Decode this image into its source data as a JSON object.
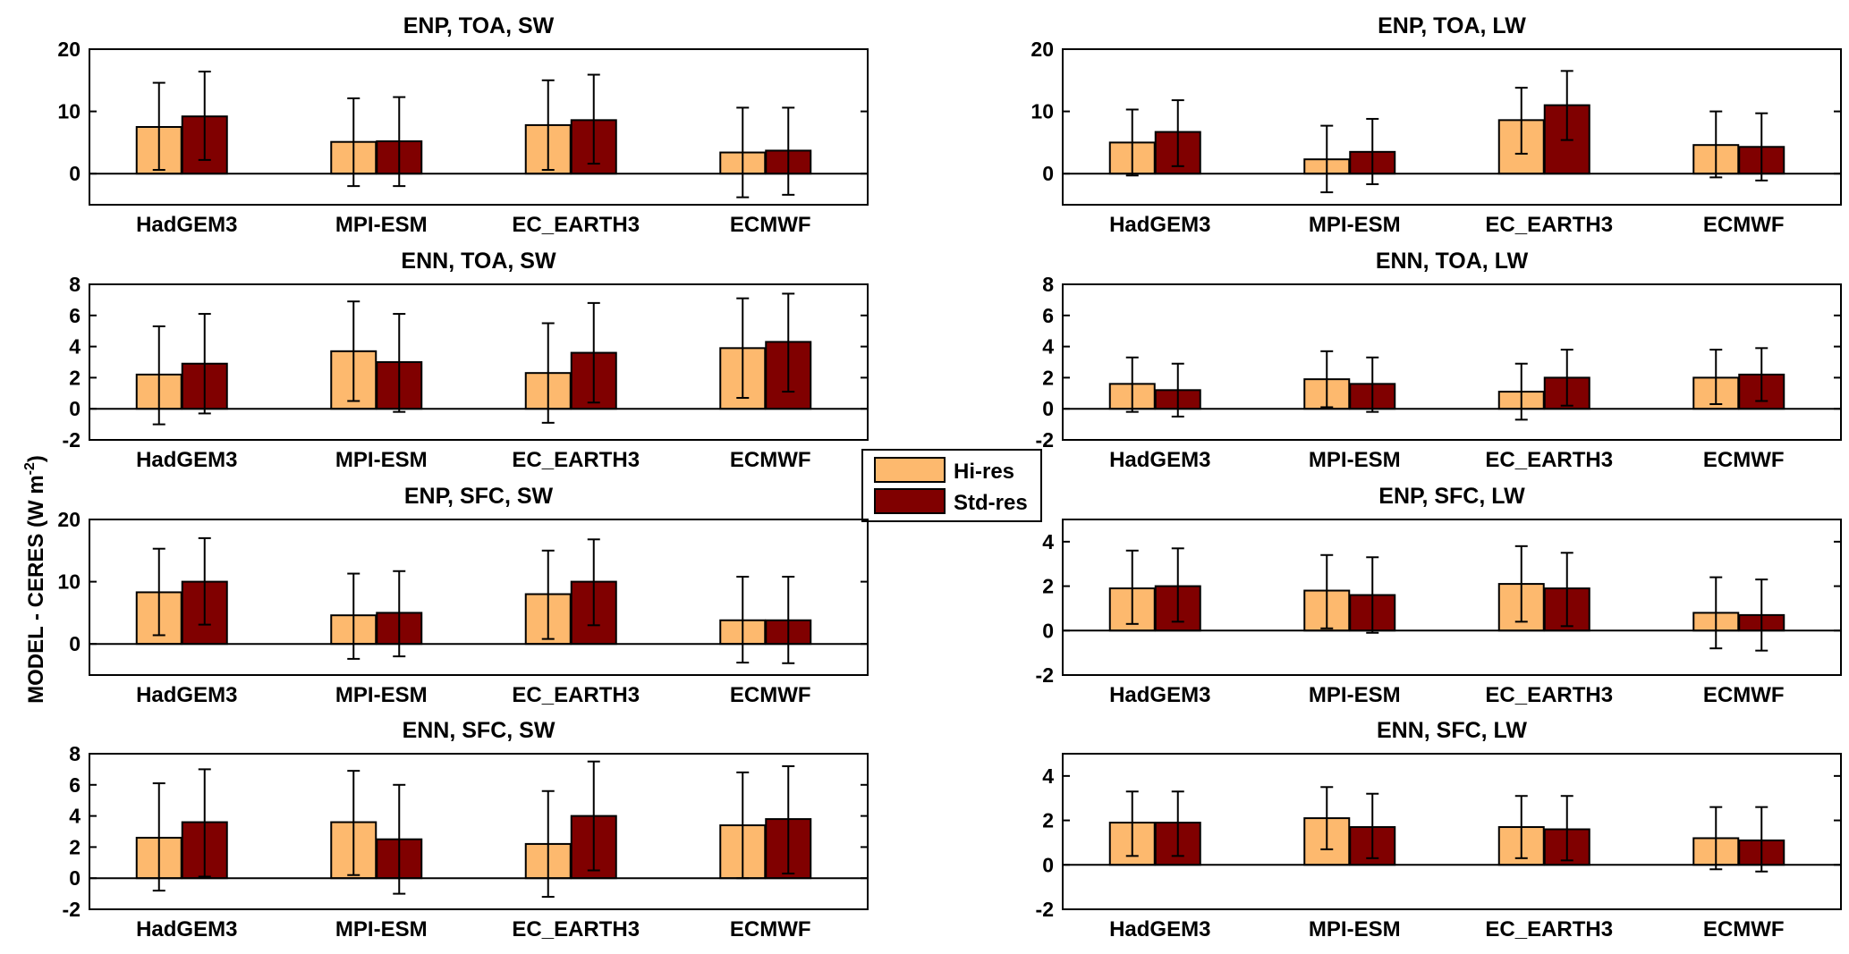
{
  "ylabel": "MODEL - CERES (W m",
  "ylabel_sup": "-2",
  "ylabel_close": ")",
  "legend": [
    {
      "name": "Hi-res",
      "color": "#fdb96e"
    },
    {
      "name": "Std-res",
      "color": "#800000"
    }
  ],
  "chart_data": [
    {
      "type": "bar",
      "title": "ENP, TOA, SW",
      "categories": [
        "HadGEM3",
        "MPI-ESM",
        "EC_EARTH3",
        "ECMWF"
      ],
      "ylim": [
        -5,
        20
      ],
      "yticks": [
        0,
        10,
        20
      ],
      "series": [
        {
          "name": "Hi-res",
          "values": [
            7.5,
            5.1,
            7.8,
            3.4
          ],
          "errlow": [
            0.6,
            -2.0,
            0.6,
            -3.8
          ],
          "errhigh": [
            14.6,
            12.1,
            15.0,
            10.6
          ]
        },
        {
          "name": "Std-res",
          "values": [
            9.2,
            5.2,
            8.6,
            3.7
          ],
          "errlow": [
            2.2,
            -2.0,
            1.6,
            -3.4
          ],
          "errhigh": [
            16.4,
            12.3,
            15.9,
            10.6
          ]
        }
      ]
    },
    {
      "type": "bar",
      "title": "ENP, TOA, LW",
      "categories": [
        "HadGEM3",
        "MPI-ESM",
        "EC_EARTH3",
        "ECMWF"
      ],
      "ylim": [
        -5,
        20
      ],
      "yticks": [
        0,
        10,
        20
      ],
      "series": [
        {
          "name": "Hi-res",
          "values": [
            5.0,
            2.3,
            8.6,
            4.6
          ],
          "errlow": [
            -0.3,
            -3.0,
            3.2,
            -0.6
          ],
          "errhigh": [
            10.3,
            7.7,
            13.8,
            10.0
          ]
        },
        {
          "name": "Std-res",
          "values": [
            6.7,
            3.5,
            11.0,
            4.3
          ],
          "errlow": [
            1.2,
            -1.7,
            5.4,
            -1.1
          ],
          "errhigh": [
            11.8,
            8.8,
            16.5,
            9.7
          ]
        }
      ]
    },
    {
      "type": "bar",
      "title": "ENN, TOA, SW",
      "categories": [
        "HadGEM3",
        "MPI-ESM",
        "EC_EARTH3",
        "ECMWF"
      ],
      "ylim": [
        -2,
        8
      ],
      "yticks": [
        -2,
        0,
        2,
        4,
        6,
        8
      ],
      "series": [
        {
          "name": "Hi-res",
          "values": [
            2.2,
            3.7,
            2.3,
            3.9
          ],
          "errlow": [
            -1.0,
            0.5,
            -0.9,
            0.7
          ],
          "errhigh": [
            5.3,
            6.9,
            5.5,
            7.1
          ]
        },
        {
          "name": "Std-res",
          "values": [
            2.9,
            3.0,
            3.6,
            4.3
          ],
          "errlow": [
            -0.3,
            -0.2,
            0.4,
            1.1
          ],
          "errhigh": [
            6.1,
            6.1,
            6.8,
            7.4
          ]
        }
      ]
    },
    {
      "type": "bar",
      "title": "ENN, TOA, LW",
      "categories": [
        "HadGEM3",
        "MPI-ESM",
        "EC_EARTH3",
        "ECMWF"
      ],
      "ylim": [
        -2,
        8
      ],
      "yticks": [
        -2,
        0,
        2,
        4,
        6,
        8
      ],
      "series": [
        {
          "name": "Hi-res",
          "values": [
            1.6,
            1.9,
            1.1,
            2.0
          ],
          "errlow": [
            -0.2,
            0.1,
            -0.7,
            0.3
          ],
          "errhigh": [
            3.3,
            3.7,
            2.9,
            3.8
          ]
        },
        {
          "name": "Std-res",
          "values": [
            1.2,
            1.6,
            2.0,
            2.2
          ],
          "errlow": [
            -0.5,
            -0.2,
            0.2,
            0.5
          ],
          "errhigh": [
            2.9,
            3.3,
            3.8,
            3.9
          ]
        }
      ]
    },
    {
      "type": "bar",
      "title": "ENP, SFC, SW",
      "categories": [
        "HadGEM3",
        "MPI-ESM",
        "EC_EARTH3",
        "ECMWF"
      ],
      "ylim": [
        -5,
        20
      ],
      "yticks": [
        0,
        10,
        20
      ],
      "series": [
        {
          "name": "Hi-res",
          "values": [
            8.3,
            4.6,
            8.0,
            3.8
          ],
          "errlow": [
            1.4,
            -2.4,
            0.8,
            -3.0
          ],
          "errhigh": [
            15.3,
            11.3,
            15.0,
            10.8
          ]
        },
        {
          "name": "Std-res",
          "values": [
            10.0,
            5.0,
            10.0,
            3.8
          ],
          "errlow": [
            3.1,
            -2.0,
            3.0,
            -3.1
          ],
          "errhigh": [
            17.0,
            11.7,
            16.8,
            10.8
          ]
        }
      ]
    },
    {
      "type": "bar",
      "title": "ENP, SFC, LW",
      "categories": [
        "HadGEM3",
        "MPI-ESM",
        "EC_EARTH3",
        "ECMWF"
      ],
      "ylim": [
        -2,
        5
      ],
      "yticks": [
        -2,
        0,
        2,
        4
      ],
      "series": [
        {
          "name": "Hi-res",
          "values": [
            1.9,
            1.8,
            2.1,
            0.8
          ],
          "errlow": [
            0.3,
            0.1,
            0.4,
            -0.8
          ],
          "errhigh": [
            3.6,
            3.4,
            3.8,
            2.4
          ]
        },
        {
          "name": "Std-res",
          "values": [
            2.0,
            1.6,
            1.9,
            0.7
          ],
          "errlow": [
            0.4,
            -0.1,
            0.2,
            -0.9
          ],
          "errhigh": [
            3.7,
            3.3,
            3.5,
            2.3
          ]
        }
      ]
    },
    {
      "type": "bar",
      "title": "ENN, SFC, SW",
      "categories": [
        "HadGEM3",
        "MPI-ESM",
        "EC_EARTH3",
        "ECMWF"
      ],
      "ylim": [
        -2,
        8
      ],
      "yticks": [
        -2,
        0,
        2,
        4,
        6,
        8
      ],
      "series": [
        {
          "name": "Hi-res",
          "values": [
            2.6,
            3.6,
            2.2,
            3.4
          ],
          "errlow": [
            -0.8,
            0.2,
            -1.2,
            0.0
          ],
          "errhigh": [
            6.1,
            6.9,
            5.6,
            6.8
          ]
        },
        {
          "name": "Std-res",
          "values": [
            3.6,
            2.5,
            4.0,
            3.8
          ],
          "errlow": [
            0.1,
            -1.0,
            0.5,
            0.3
          ],
          "errhigh": [
            7.0,
            6.0,
            7.5,
            7.2
          ]
        }
      ]
    },
    {
      "type": "bar",
      "title": "ENN, SFC, LW",
      "categories": [
        "HadGEM3",
        "MPI-ESM",
        "EC_EARTH3",
        "ECMWF"
      ],
      "ylim": [
        -2,
        5
      ],
      "yticks": [
        -2,
        0,
        2,
        4
      ],
      "series": [
        {
          "name": "Hi-res",
          "values": [
            1.9,
            2.1,
            1.7,
            1.2
          ],
          "errlow": [
            0.4,
            0.7,
            0.3,
            -0.2
          ],
          "errhigh": [
            3.3,
            3.5,
            3.1,
            2.6
          ]
        },
        {
          "name": "Std-res",
          "values": [
            1.9,
            1.7,
            1.6,
            1.1
          ],
          "errlow": [
            0.4,
            0.3,
            0.2,
            -0.3
          ],
          "errhigh": [
            3.3,
            3.2,
            3.1,
            2.6
          ]
        }
      ]
    }
  ]
}
